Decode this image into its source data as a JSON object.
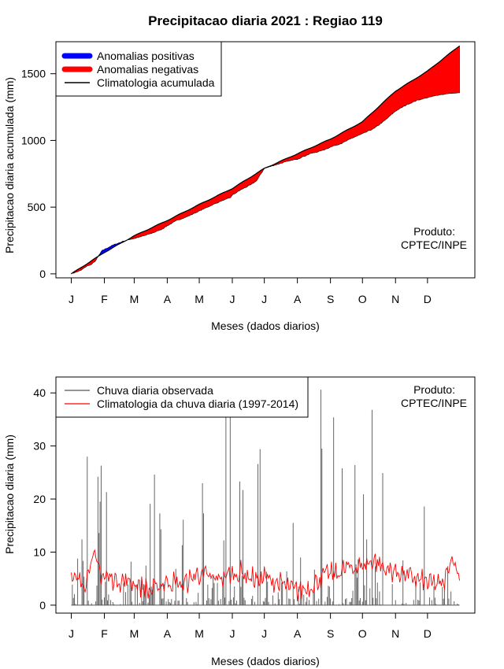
{
  "title": "Precipitacao diaria 2021 : Regiao 119",
  "colors": {
    "positive": "#0000ff",
    "negative": "#ff0000",
    "climatology_line": "#000000",
    "observed": "#555555",
    "clim_daily": "#ff0000"
  },
  "chart_data": [
    {
      "type": "area",
      "title": "Precipitacao diaria 2021 : Regiao 119",
      "xlabel": "Meses (dados diarios)",
      "ylabel": "Precipitacao diaria acumulada (mm)",
      "month_labels": [
        "J",
        "F",
        "M",
        "A",
        "M",
        "J",
        "J",
        "A",
        "S",
        "O",
        "N",
        "D"
      ],
      "month_days": [
        1,
        32,
        60,
        91,
        121,
        152,
        182,
        213,
        244,
        274,
        305,
        335
      ],
      "x_range": [
        1,
        365
      ],
      "y_ticks": [
        0,
        500,
        1000,
        1500
      ],
      "ylim": [
        -30,
        1740
      ],
      "annotation": [
        "Produto:",
        "CPTEC/INPE"
      ],
      "legend": [
        "Anomalias positivas",
        "Anomalias negativas",
        "Climatologia acumulada"
      ],
      "climatology_points": [
        [
          1,
          0
        ],
        [
          32,
          160
        ],
        [
          60,
          285
        ],
        [
          91,
          400
        ],
        [
          121,
          520
        ],
        [
          152,
          640
        ],
        [
          182,
          790
        ],
        [
          213,
          900
        ],
        [
          244,
          1010
        ],
        [
          274,
          1140
        ],
        [
          305,
          1370
        ],
        [
          335,
          1520
        ],
        [
          365,
          1710
        ]
      ],
      "observed_points": [
        [
          1,
          0
        ],
        [
          10,
          25
        ],
        [
          15,
          55
        ],
        [
          20,
          70
        ],
        [
          24,
          100
        ],
        [
          27,
          140
        ],
        [
          30,
          175
        ],
        [
          35,
          195
        ],
        [
          40,
          215
        ],
        [
          45,
          230
        ],
        [
          50,
          245
        ],
        [
          55,
          256
        ],
        [
          60,
          265
        ],
        [
          65,
          275
        ],
        [
          75,
          300
        ],
        [
          85,
          330
        ],
        [
          91,
          360
        ],
        [
          100,
          400
        ],
        [
          110,
          430
        ],
        [
          121,
          470
        ],
        [
          130,
          505
        ],
        [
          140,
          540
        ],
        [
          150,
          570
        ],
        [
          152,
          590
        ],
        [
          160,
          630
        ],
        [
          170,
          670
        ],
        [
          175,
          700
        ],
        [
          182,
          790
        ],
        [
          190,
          810
        ],
        [
          200,
          835
        ],
        [
          213,
          860
        ],
        [
          225,
          900
        ],
        [
          235,
          920
        ],
        [
          244,
          950
        ],
        [
          255,
          980
        ],
        [
          265,
          1020
        ],
        [
          274,
          1050
        ],
        [
          285,
          1090
        ],
        [
          295,
          1150
        ],
        [
          305,
          1220
        ],
        [
          315,
          1265
        ],
        [
          325,
          1300
        ],
        [
          335,
          1320
        ],
        [
          345,
          1340
        ],
        [
          355,
          1350
        ],
        [
          365,
          1355
        ]
      ]
    },
    {
      "type": "line",
      "xlabel": "Meses (dados diarios)",
      "ylabel": "Precipitacao diaria (mm)",
      "month_labels": [
        "J",
        "F",
        "M",
        "A",
        "M",
        "J",
        "J",
        "A",
        "S",
        "O",
        "N",
        "D"
      ],
      "month_days": [
        1,
        32,
        60,
        91,
        121,
        152,
        182,
        213,
        244,
        274,
        305,
        335
      ],
      "x_range": [
        1,
        365
      ],
      "y_ticks": [
        0,
        10,
        20,
        30,
        40
      ],
      "ylim": [
        -1.5,
        43
      ],
      "annotation": [
        "Produto:",
        "CPTEC/INPE"
      ],
      "legend": [
        "Chuva diaria observada",
        "Climatologia da chuva diaria (1997-2014)"
      ],
      "series": [
        {
          "name": "Chuva diaria observada",
          "kind": "bars",
          "daily_total_mm": 1355,
          "peaks": [
            [
              11,
              12.4
            ],
            [
              16,
              28
            ],
            [
              26,
              24.2
            ],
            [
              27,
              13.6
            ],
            [
              28,
              19.5
            ],
            [
              29,
              26.3
            ],
            [
              34,
              21.3
            ],
            [
              57,
              8.2
            ],
            [
              75,
              19.1
            ],
            [
              79,
              24.6
            ],
            [
              84,
              17.3
            ],
            [
              85,
              14.3
            ],
            [
              105,
              11.3
            ],
            [
              106,
              16.1
            ],
            [
              124,
              23
            ],
            [
              125,
              17.3
            ],
            [
              144,
              12.2
            ],
            [
              146,
              40
            ],
            [
              150,
              40
            ],
            [
              159,
              23.3
            ],
            [
              162,
              21.7
            ],
            [
              176,
              26.6
            ],
            [
              178,
              29.4
            ],
            [
              209,
              15.5
            ],
            [
              235,
              40.6
            ],
            [
              236,
              29.5
            ],
            [
              247,
              35.4
            ],
            [
              255,
              25.8
            ],
            [
              267,
              26.4
            ],
            [
              275,
              20.9
            ],
            [
              278,
              12.4
            ],
            [
              283,
              36.8
            ],
            [
              293,
              24.9
            ],
            [
              332,
              18.6
            ]
          ]
        },
        {
          "name": "Climatologia da chuva diaria (1997-2014)",
          "kind": "line",
          "anchors": [
            [
              1,
              4.5
            ],
            [
              15,
              4.6
            ],
            [
              20,
              9.5
            ],
            [
              30,
              5.6
            ],
            [
              45,
              4.7
            ],
            [
              60,
              4.3
            ],
            [
              75,
              2.6
            ],
            [
              90,
              4.5
            ],
            [
              105,
              3.8
            ],
            [
              120,
              6
            ],
            [
              135,
              4.8
            ],
            [
              145,
              5.5
            ],
            [
              160,
              6.2
            ],
            [
              175,
              4.7
            ],
            [
              182,
              5.2
            ],
            [
              195,
              4.2
            ],
            [
              213,
              2.6
            ],
            [
              225,
              3.5
            ],
            [
              240,
              5.8
            ],
            [
              250,
              5.9
            ],
            [
              260,
              7
            ],
            [
              274,
              7.4
            ],
            [
              285,
              8.5
            ],
            [
              295,
              6.8
            ],
            [
              305,
              6.4
            ],
            [
              320,
              5.2
            ],
            [
              335,
              4.2
            ],
            [
              350,
              3.8
            ],
            [
              358,
              9.5
            ],
            [
              365,
              5
            ]
          ]
        }
      ]
    }
  ]
}
